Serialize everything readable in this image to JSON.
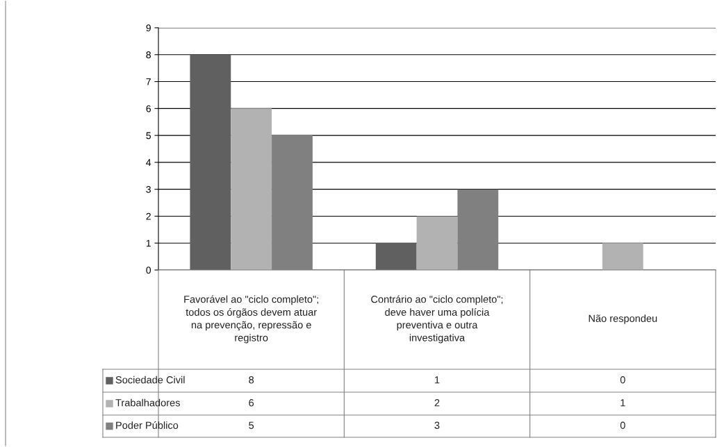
{
  "chart_data": {
    "type": "bar",
    "categories": [
      "Favorável ao \"ciclo completo\"; todos os órgãos devem atuar na prevenção, repressão e registro",
      "Contrário ao \"ciclo completo\"; deve haver uma polícia preventiva e outra investigativa",
      "Não respondeu"
    ],
    "series": [
      {
        "name": "Sociedade Civil",
        "color": "#606060",
        "values": [
          8,
          1,
          0
        ]
      },
      {
        "name": "Trabalhadores",
        "color": "#b2b2b2",
        "values": [
          6,
          2,
          1
        ]
      },
      {
        "name": "Poder Público",
        "color": "#808080",
        "values": [
          5,
          3,
          0
        ]
      }
    ],
    "ylim": [
      0,
      9
    ],
    "yticks": [
      0,
      1,
      2,
      3,
      4,
      5,
      6,
      7,
      8,
      9
    ],
    "grid": "y",
    "legend": "bottom left",
    "data_labels": true
  }
}
